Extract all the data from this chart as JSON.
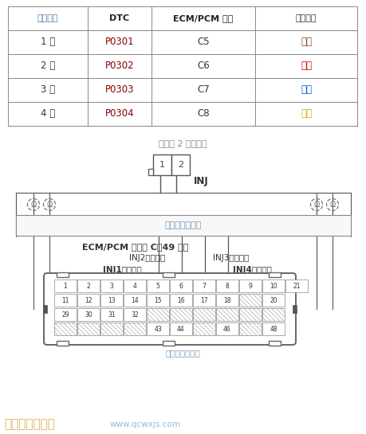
{
  "table_headers": [
    "故障气缸",
    "DTC",
    "ECM/PCM 端子",
    "线束颜色"
  ],
  "table_rows": [
    [
      "1 号",
      "P0301",
      "C5",
      "棕色"
    ],
    [
      "2 号",
      "P0302",
      "C6",
      "红色"
    ],
    [
      "3 号",
      "P0303",
      "C7",
      "蓝色"
    ],
    [
      "4 号",
      "P0304",
      "C8",
      "黄色"
    ]
  ],
  "dtc_color": "#8B0000",
  "last_col_colors": [
    "#8B4513",
    "#cc0000",
    "#0055cc",
    "#ccaa00"
  ],
  "label_injector": "喷油器 2 针插接器",
  "label_inj": "INJ",
  "label_harness": "闭端子的线束侧",
  "label_ecm": "ECM/PCM 插接器 C（49 针）",
  "label_inj1": "INJ1（棕色）",
  "label_inj2": "INJ2（红色）",
  "label_inj3": "INJ3（蓝色）",
  "label_inj4": "INJ4（黄色）",
  "label_terminal_side": "闭端子的端子侧",
  "watermark_text": "汽车维修技术网",
  "watermark_url": "www.qcwxjs.com",
  "bg_color": "#ffffff",
  "table_line_color": "#888888",
  "diagram_line_color": "#777777",
  "connector_border_color": "#888888",
  "blue_text_color": "#7799bb",
  "header_col1_color": "#5577aa",
  "ecm_label_color": "#333333",
  "inj_label_color": "#333333",
  "cell_hatch_color": "#aaaaaa",
  "wm_color": "#ddaa44",
  "wm_url_color": "#88aacc"
}
